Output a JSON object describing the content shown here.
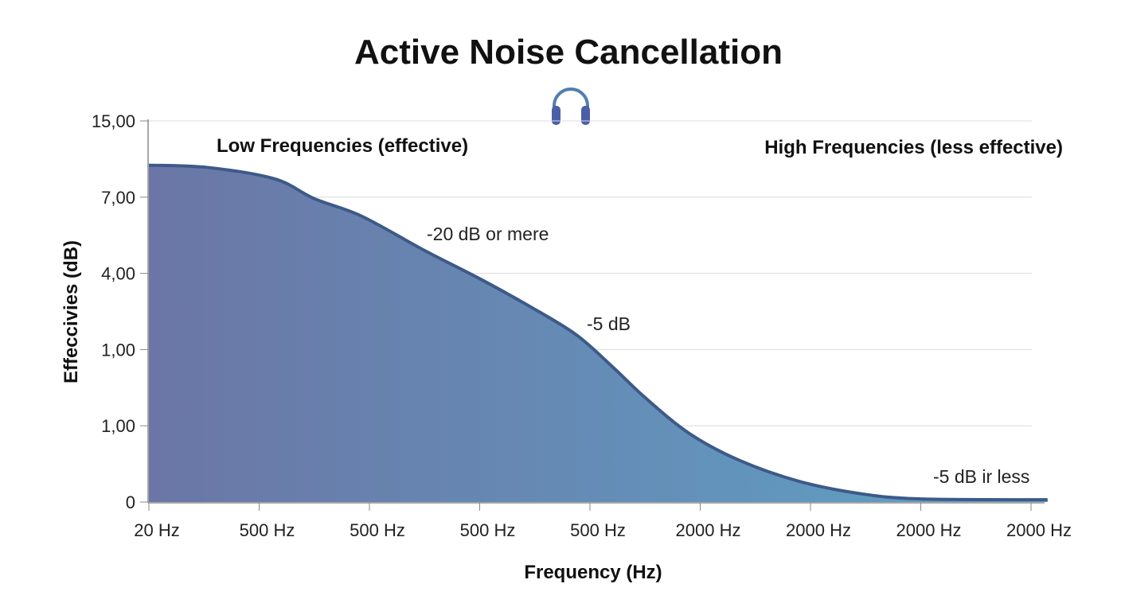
{
  "chart_data": {
    "type": "area",
    "title": "Active Noise Cancellation",
    "title_icon": "headphones-icon",
    "xlabel": "Frequency (Hz)",
    "ylabel": "Effeccivies (dB)",
    "x_tick_labels": [
      "20 Hz",
      "500 Hz",
      "500 Hz",
      "500 Hz",
      "500 Hz",
      "2000 Hz",
      "2000 Hz",
      "2000 Hz",
      "2000 Hz"
    ],
    "y_tick_labels": [
      "0",
      "1,00",
      "1,00",
      "4,00",
      "7,00",
      "15,00"
    ],
    "grid": "horizontal",
    "note": "Points given on the printed tick-position scale (x = index of x tick label, y = index of y tick label)",
    "points": [
      [
        0,
        4.42
      ],
      [
        0.53,
        4.39
      ],
      [
        1.14,
        4.24
      ],
      [
        1.5,
        3.98
      ],
      [
        1.93,
        3.75
      ],
      [
        2.5,
        3.3
      ],
      [
        3.0,
        2.93
      ],
      [
        3.45,
        2.57
      ],
      [
        3.87,
        2.2
      ],
      [
        4.2,
        1.78
      ],
      [
        4.5,
        1.37
      ],
      [
        4.9,
        0.9
      ],
      [
        5.35,
        0.55
      ],
      [
        5.9,
        0.27
      ],
      [
        6.45,
        0.11
      ],
      [
        7.0,
        0.04
      ],
      [
        8.15,
        0.03
      ]
    ],
    "region_labels": [
      "Low Frequencies (effective)",
      "High Frequencies (less effective)"
    ],
    "annotations": [
      "-20 dB or mere",
      "-5 dB",
      "-5 dB ir less"
    ],
    "colors": {
      "fill_left": "#6b76a6",
      "fill_right": "#5ea3c6",
      "line": "#3d5a88",
      "icon": "#4a66a8"
    }
  }
}
